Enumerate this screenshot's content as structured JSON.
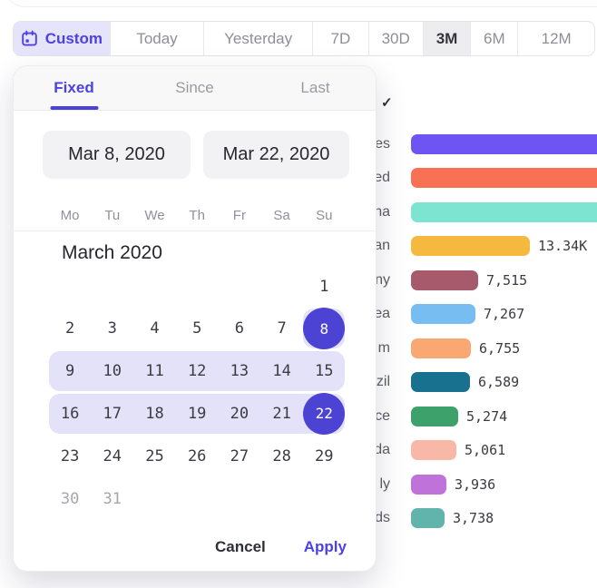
{
  "colors": {
    "accent_indigo": "#4c42e3",
    "selected_day_circle": "#4c43d4",
    "range_highlight": "#e4e2f9",
    "custom_segment_bg": "#e6e4fb",
    "selected_segment_bg": "#ededf0"
  },
  "toolbar": {
    "segments": [
      {
        "label": "Custom",
        "icon": "calendar-icon",
        "variant": "custom"
      },
      {
        "label": "Today"
      },
      {
        "label": "Yesterday"
      },
      {
        "label": "7D"
      },
      {
        "label": "30D"
      },
      {
        "label": "3M",
        "variant": "selected"
      },
      {
        "label": "6M"
      },
      {
        "label": "12M"
      }
    ]
  },
  "background": {
    "checkmark_glyph": "✓"
  },
  "picker": {
    "tabs": [
      {
        "label": "Fixed",
        "active": true
      },
      {
        "label": "Since",
        "active": false
      },
      {
        "label": "Last",
        "active": false
      }
    ],
    "start_date": "Mar 8, 2020",
    "end_date": "Mar 22, 2020",
    "weekdays": [
      "Mo",
      "Tu",
      "We",
      "Th",
      "Fr",
      "Sa",
      "Su"
    ],
    "month_title": "March 2020",
    "calendar_rows": [
      [
        null,
        null,
        null,
        null,
        null,
        null,
        {
          "day": "1"
        }
      ],
      [
        {
          "day": "2"
        },
        {
          "day": "3"
        },
        {
          "day": "4"
        },
        {
          "day": "5"
        },
        {
          "day": "6"
        },
        {
          "day": "7"
        },
        {
          "day": "8",
          "state": "selected"
        }
      ],
      [
        {
          "day": "9",
          "state": "range"
        },
        {
          "day": "10",
          "state": "range"
        },
        {
          "day": "11",
          "state": "range"
        },
        {
          "day": "12",
          "state": "range"
        },
        {
          "day": "13",
          "state": "range"
        },
        {
          "day": "14",
          "state": "range"
        },
        {
          "day": "15",
          "state": "range"
        }
      ],
      [
        {
          "day": "16",
          "state": "range"
        },
        {
          "day": "17",
          "state": "range"
        },
        {
          "day": "18",
          "state": "range"
        },
        {
          "day": "19",
          "state": "range"
        },
        {
          "day": "20",
          "state": "range"
        },
        {
          "day": "21",
          "state": "range"
        },
        {
          "day": "22",
          "state": "selected"
        }
      ],
      [
        {
          "day": "23"
        },
        {
          "day": "24"
        },
        {
          "day": "25"
        },
        {
          "day": "26"
        },
        {
          "day": "27"
        },
        {
          "day": "28"
        },
        {
          "day": "29"
        }
      ],
      [
        {
          "day": "30",
          "state": "muted"
        },
        {
          "day": "31",
          "state": "muted"
        },
        null,
        null,
        null,
        null,
        null
      ]
    ],
    "cancel_label": "Cancel",
    "apply_label": "Apply"
  },
  "chart": {
    "rows": [
      {
        "label_fragment": "es",
        "color": "#6e55f3",
        "value": null,
        "value_label": ""
      },
      {
        "label_fragment": "ed",
        "color": "#f97155",
        "value": null,
        "value_label": ""
      },
      {
        "label_fragment": "na",
        "color": "#7ce4d0",
        "value": null,
        "value_label": ""
      },
      {
        "label_fragment": "an",
        "color": "#f6b93f",
        "value": 13340,
        "value_label": "13.34K"
      },
      {
        "label_fragment": "ny",
        "color": "#a75a6b",
        "value": 7515,
        "value_label": "7,515"
      },
      {
        "label_fragment": "ea",
        "color": "#78bdf2",
        "value": 7267,
        "value_label": "7,267"
      },
      {
        "label_fragment": "m",
        "color": "#f9a873",
        "value": 6755,
        "value_label": "6,755"
      },
      {
        "label_fragment": "zil",
        "color": "#17718f",
        "value": 6589,
        "value_label": "6,589"
      },
      {
        "label_fragment": "ce",
        "color": "#3da16b",
        "value": 5274,
        "value_label": "5,274"
      },
      {
        "label_fragment": "da",
        "color": "#f9b7a8",
        "value": 5061,
        "value_label": "5,061"
      },
      {
        "label_fragment": "ly",
        "color": "#bf72da",
        "value": 3936,
        "value_label": "3,936"
      },
      {
        "label_fragment": "ds",
        "color": "#61b4ab",
        "value": 3738,
        "value_label": "3,738"
      }
    ]
  },
  "chart_data": {
    "type": "bar",
    "orientation": "horizontal",
    "categories": [
      "es",
      "ed",
      "na",
      "an",
      "ny",
      "ea",
      "m",
      "zil",
      "ce",
      "da",
      "ly",
      "ds"
    ],
    "values": [
      null,
      null,
      null,
      13340,
      7515,
      7267,
      6755,
      6589,
      5274,
      5061,
      3936,
      3738
    ],
    "value_labels": [
      "",
      "",
      "",
      "13.34K",
      "7,515",
      "7,267",
      "6,755",
      "6,589",
      "5,274",
      "5,061",
      "3,936",
      "3,738"
    ],
    "colors": [
      "#6e55f3",
      "#f97155",
      "#7ce4d0",
      "#f6b93f",
      "#a75a6b",
      "#78bdf2",
      "#f9a873",
      "#17718f",
      "#3da16b",
      "#f9b7a8",
      "#bf72da",
      "#61b4ab"
    ],
    "title": "",
    "note": "category labels truncated and first three bars cut off by overlaying date-picker popup"
  }
}
